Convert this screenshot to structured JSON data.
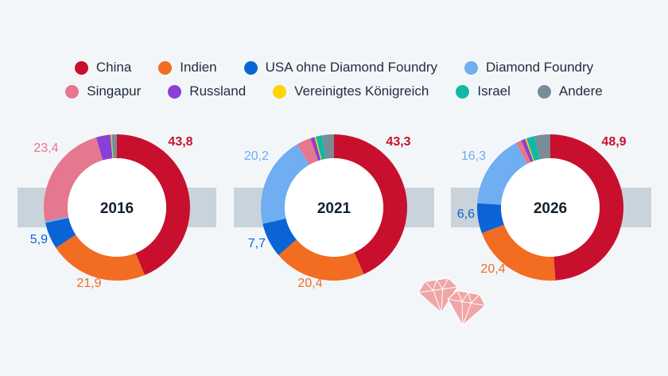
{
  "chart_data": {
    "type": "donut",
    "legend": [
      {
        "label": "China",
        "color": "#c8102e"
      },
      {
        "label": "Indien",
        "color": "#f26c21"
      },
      {
        "label": "USA ohne Diamond Foundry",
        "color": "#0b64d6"
      },
      {
        "label": "Diamond Foundry",
        "color": "#6eaef1"
      },
      {
        "label": "Singapur",
        "color": "#e5778f"
      },
      {
        "label": "Russland",
        "color": "#8a3fd6"
      },
      {
        "label": "Vereinigtes Königreich",
        "color": "#ffd400"
      },
      {
        "label": "Israel",
        "color": "#12b8a6"
      },
      {
        "label": "Andere",
        "color": "#7a8c98"
      }
    ],
    "charts": [
      {
        "year": "2016",
        "segments": [
          {
            "name": "China",
            "value": 43.8,
            "label": "43,8"
          },
          {
            "name": "Indien",
            "value": 21.9,
            "label": "21,9"
          },
          {
            "name": "USA ohne Diamond Foundry",
            "value": 5.9,
            "label": "5,9"
          },
          {
            "name": "Diamond Foundry",
            "value": 0.4,
            "label": ""
          },
          {
            "name": "Singapur",
            "value": 23.4,
            "label": "23,4"
          },
          {
            "name": "Russland",
            "value": 3.2,
            "label": ""
          },
          {
            "name": "Vereinigtes Königreich",
            "value": 0.2,
            "label": ""
          },
          {
            "name": "Israel",
            "value": 0.1,
            "label": ""
          },
          {
            "name": "Andere",
            "value": 1.1,
            "label": ""
          }
        ]
      },
      {
        "year": "2021",
        "segments": [
          {
            "name": "China",
            "value": 43.3,
            "label": "43,3"
          },
          {
            "name": "Indien",
            "value": 20.4,
            "label": "20,4"
          },
          {
            "name": "USA ohne Diamond Foundry",
            "value": 7.7,
            "label": "7,7"
          },
          {
            "name": "Diamond Foundry",
            "value": 20.2,
            "label": "20,2"
          },
          {
            "name": "Singapur",
            "value": 3.2,
            "label": ""
          },
          {
            "name": "Russland",
            "value": 0.9,
            "label": ""
          },
          {
            "name": "Vereinigtes Königreich",
            "value": 0.3,
            "label": ""
          },
          {
            "name": "Israel",
            "value": 1.4,
            "label": ""
          },
          {
            "name": "Andere",
            "value": 2.6,
            "label": ""
          }
        ]
      },
      {
        "year": "2026",
        "segments": [
          {
            "name": "China",
            "value": 48.9,
            "label": "48,9"
          },
          {
            "name": "Indien",
            "value": 20.4,
            "label": "20,4"
          },
          {
            "name": "USA ohne Diamond Foundry",
            "value": 6.6,
            "label": "6,6"
          },
          {
            "name": "Diamond Foundry",
            "value": 16.3,
            "label": "16,3"
          },
          {
            "name": "Singapur",
            "value": 1.3,
            "label": ""
          },
          {
            "name": "Russland",
            "value": 0.9,
            "label": ""
          },
          {
            "name": "Vereinigtes Königreich",
            "value": 0.3,
            "label": ""
          },
          {
            "name": "Israel",
            "value": 1.9,
            "label": ""
          },
          {
            "name": "Andere",
            "value": 3.4,
            "label": ""
          }
        ]
      }
    ]
  },
  "decoration": {
    "icon": "diamond-icon",
    "color": "#f0a6a6"
  }
}
